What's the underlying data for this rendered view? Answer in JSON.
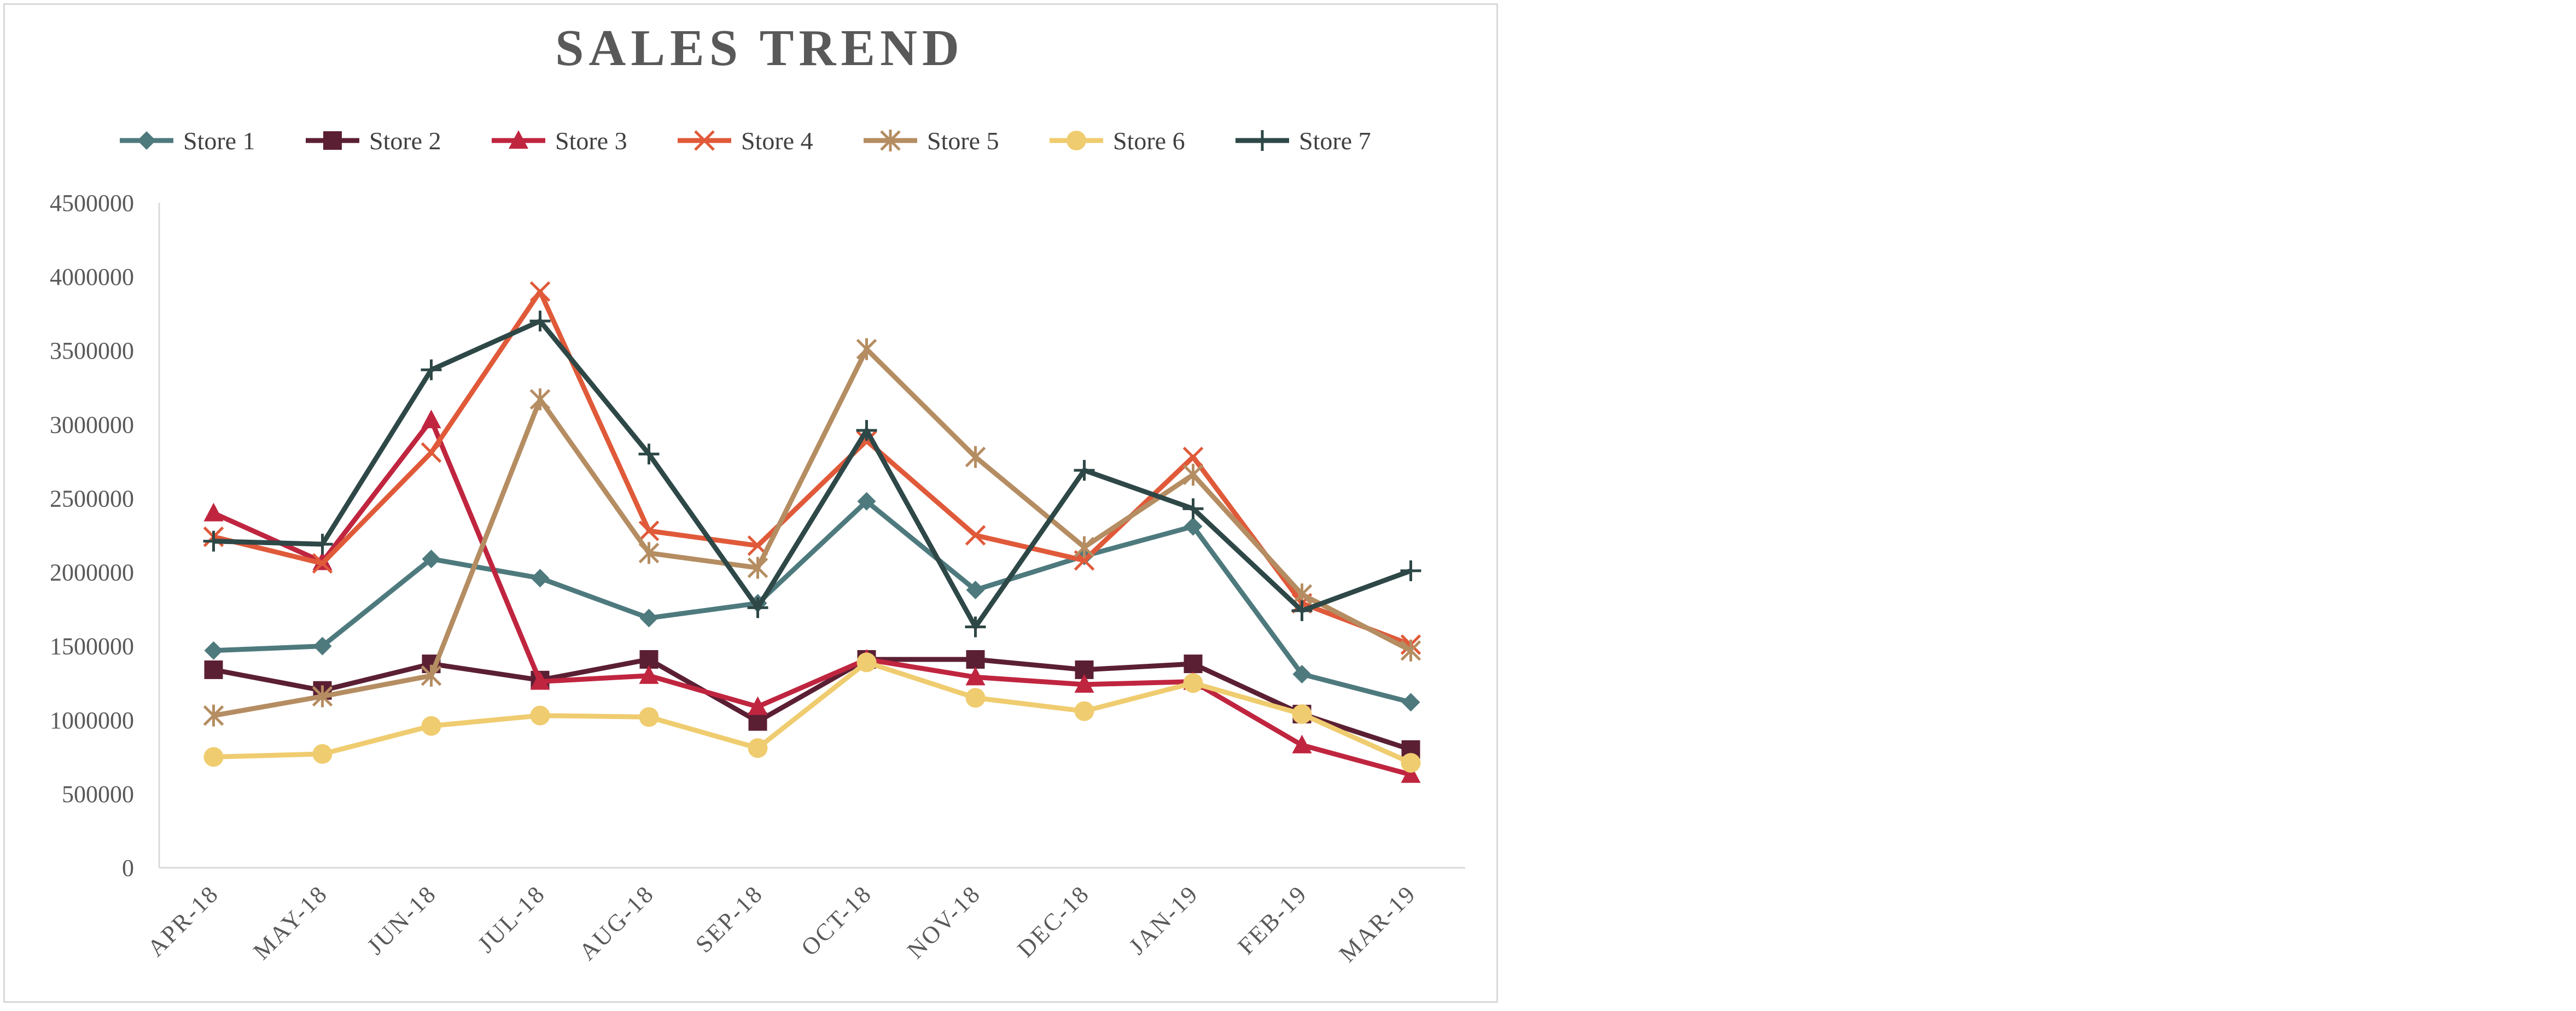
{
  "chart_data": {
    "type": "line",
    "title": "SALES TREND",
    "xlabel": "",
    "ylabel": "",
    "ylim": [
      0,
      4500000
    ],
    "yticks": [
      0,
      500000,
      1000000,
      1500000,
      2000000,
      2500000,
      3000000,
      3500000,
      4000000,
      4500000
    ],
    "grid": false,
    "legend_position": "top",
    "categories": [
      "APR-18",
      "MAY-18",
      "JUN-18",
      "JUL-18",
      "AUG-18",
      "SEP-18",
      "OCT-18",
      "NOV-18",
      "DEC-18",
      "JAN-19",
      "FEB-19",
      "MAR-19"
    ],
    "series": [
      {
        "name": "Store 1",
        "color": "#4e7a7e",
        "marker": "diamond",
        "values": [
          1470000,
          1500000,
          2090000,
          1960000,
          1690000,
          1790000,
          2480000,
          1880000,
          2110000,
          2310000,
          1310000,
          1120000
        ]
      },
      {
        "name": "Store 2",
        "color": "#5b1f33",
        "marker": "square",
        "values": [
          1340000,
          1200000,
          1380000,
          1270000,
          1410000,
          990000,
          1410000,
          1410000,
          1340000,
          1380000,
          1040000,
          800000
        ]
      },
      {
        "name": "Store 3",
        "color": "#c0253f",
        "marker": "triangle",
        "values": [
          2400000,
          2070000,
          3030000,
          1260000,
          1300000,
          1090000,
          1410000,
          1290000,
          1240000,
          1260000,
          830000,
          630000
        ]
      },
      {
        "name": "Store 4",
        "color": "#e05a3a",
        "marker": "x",
        "values": [
          2240000,
          2060000,
          2810000,
          3900000,
          2280000,
          2180000,
          2890000,
          2250000,
          2080000,
          2780000,
          1790000,
          1510000
        ]
      },
      {
        "name": "Store 5",
        "color": "#b58d62",
        "marker": "asterisk",
        "values": [
          1030000,
          1160000,
          1300000,
          3170000,
          2130000,
          2030000,
          3510000,
          2780000,
          2170000,
          2660000,
          1850000,
          1470000
        ]
      },
      {
        "name": "Store 6",
        "color": "#efcc6f",
        "marker": "circle",
        "values": [
          750000,
          770000,
          960000,
          1030000,
          1020000,
          810000,
          1390000,
          1150000,
          1060000,
          1250000,
          1040000,
          710000
        ]
      },
      {
        "name": "Store 7",
        "color": "#2e4747",
        "marker": "plus",
        "values": [
          2210000,
          2190000,
          3370000,
          3700000,
          2800000,
          1760000,
          2960000,
          1630000,
          2690000,
          2430000,
          1740000,
          2010000
        ]
      }
    ]
  }
}
